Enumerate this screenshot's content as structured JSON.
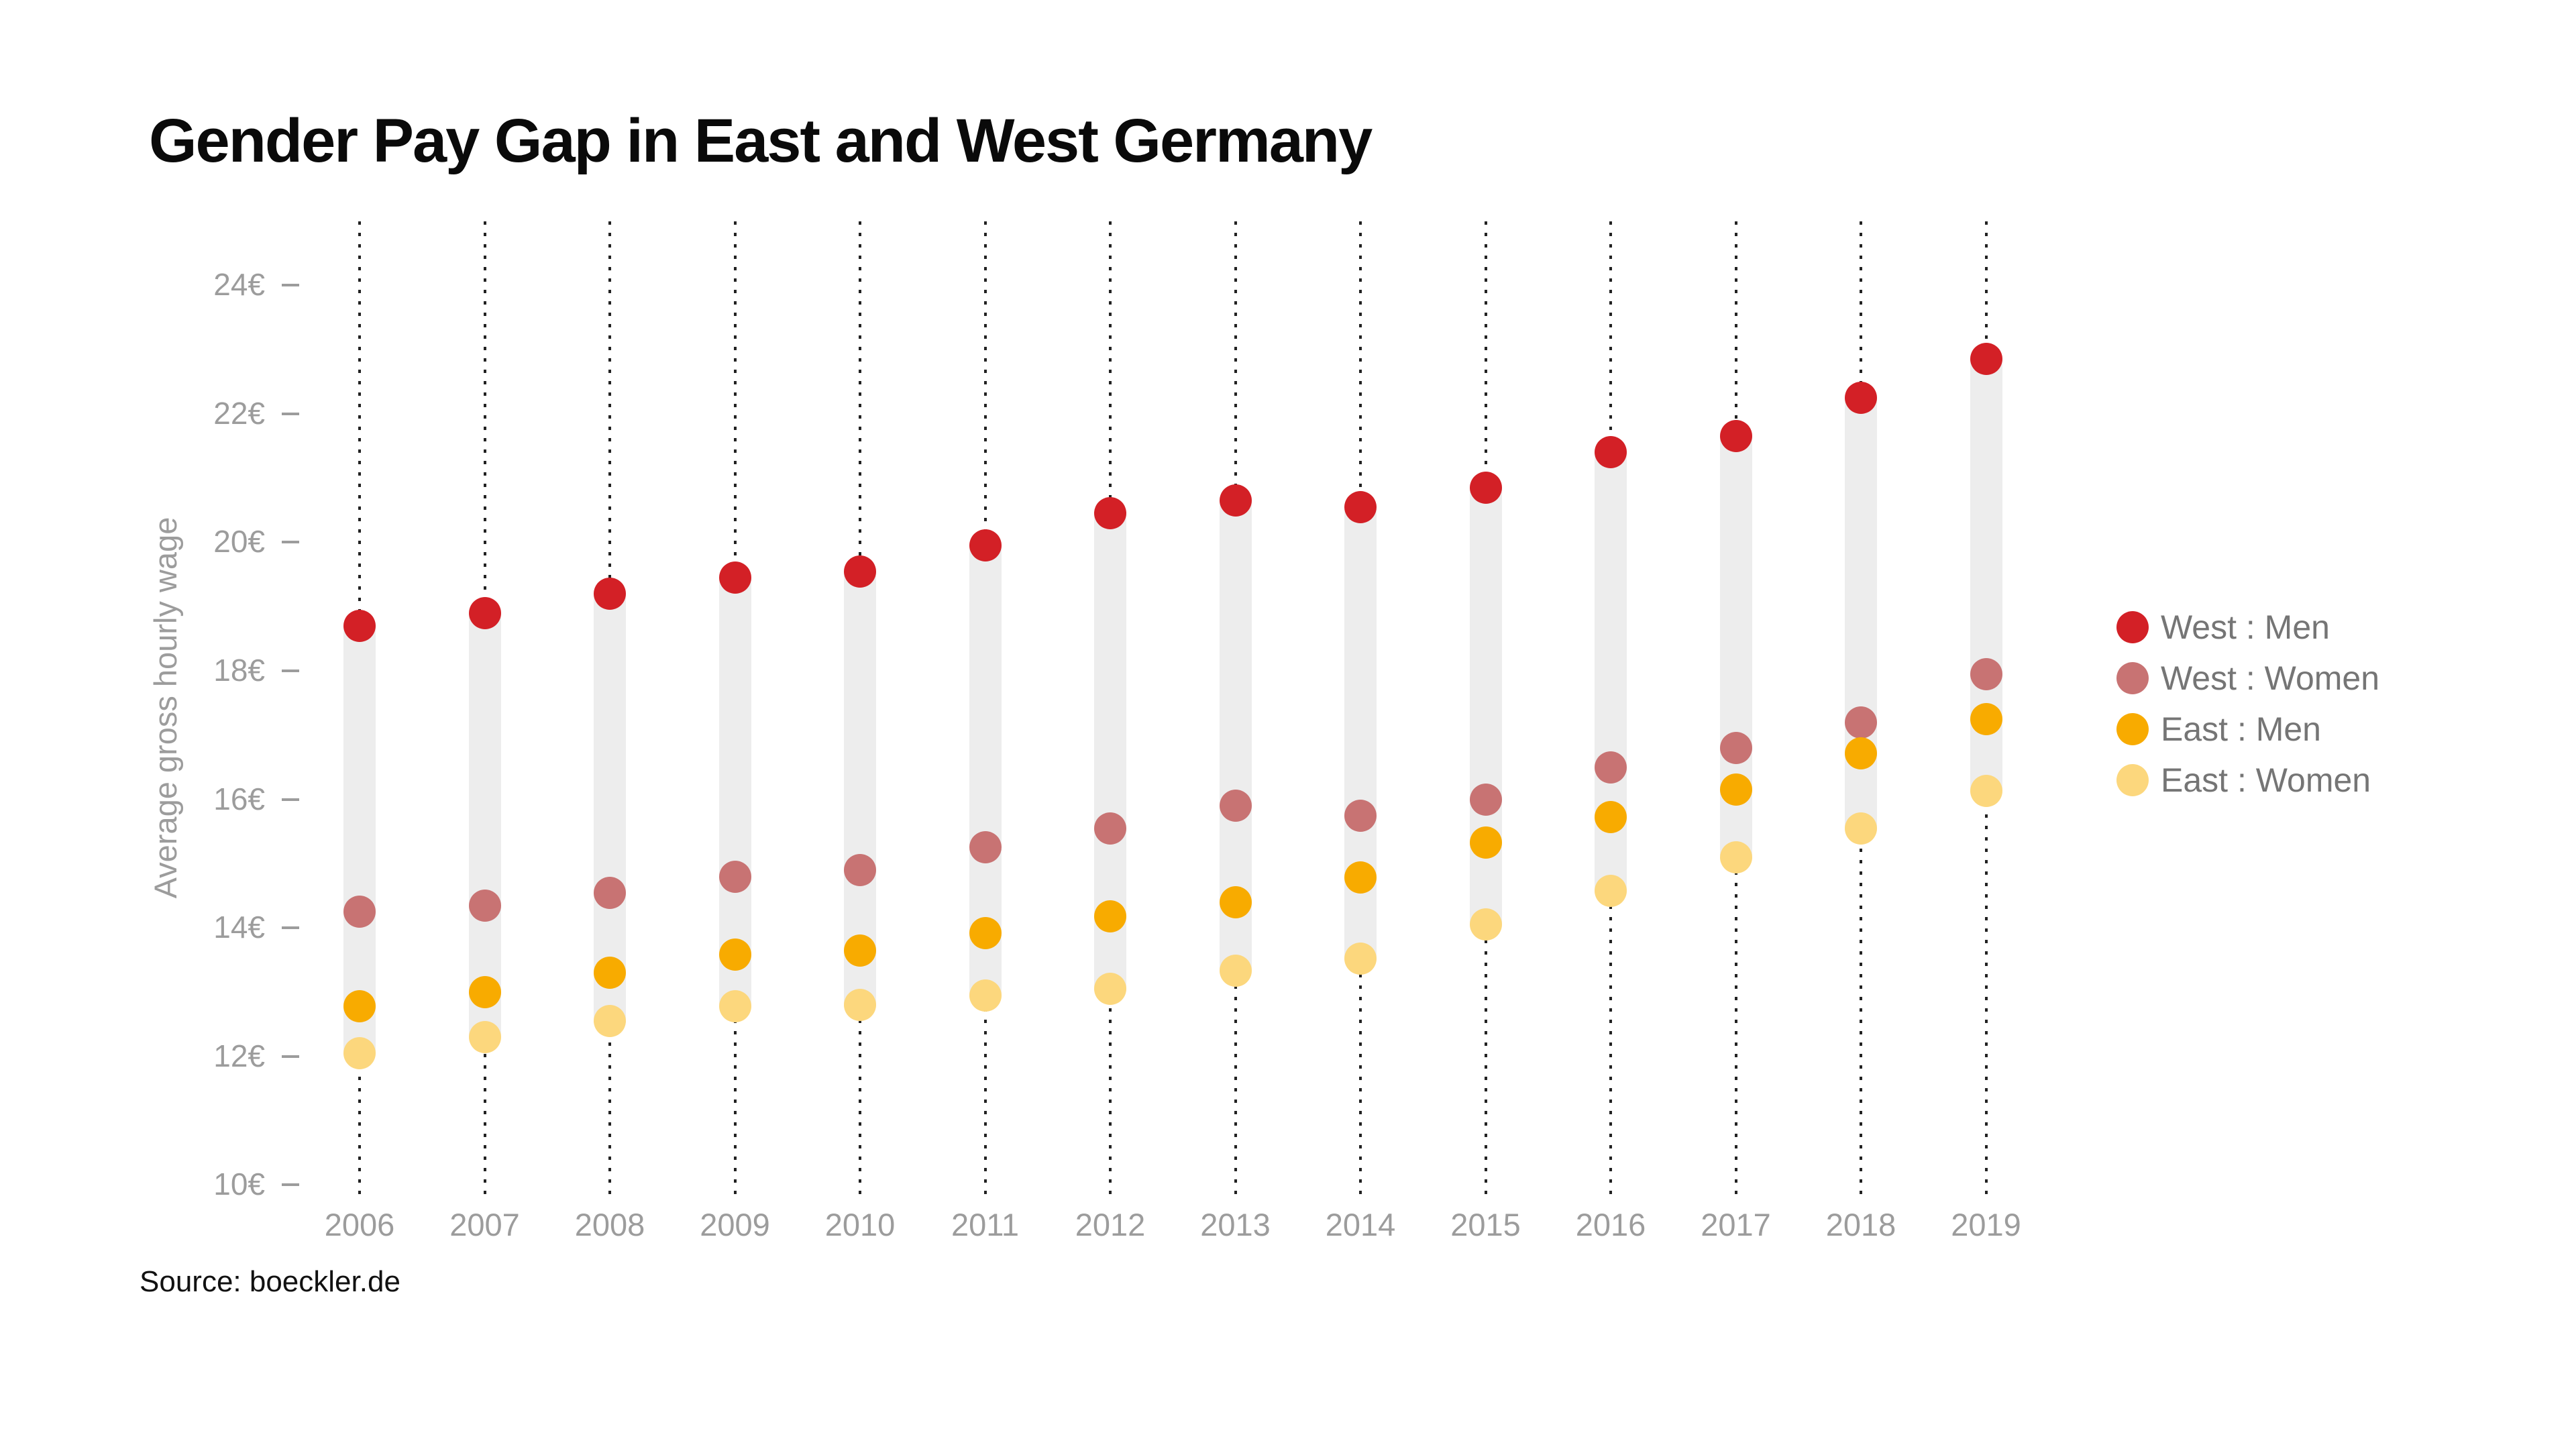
{
  "title": "Gender Pay Gap in East and West Germany",
  "source": "Source: boeckler.de",
  "y_axis": {
    "label": "Average gross hourly wage",
    "tick_suffix": "€"
  },
  "legend": [
    {
      "label": "West : Men",
      "color": "#d32026"
    },
    {
      "label": "West : Women",
      "color": "#c87373"
    },
    {
      "label": "East : Men",
      "color": "#f8ab00"
    },
    {
      "label": "East : Women",
      "color": "#fcd77d"
    }
  ],
  "chart_data": {
    "type": "scatter",
    "subtype": "dot-column-range-plot",
    "title": "Gender Pay Gap in East and West Germany",
    "xlabel": "",
    "ylabel": "Average gross hourly wage",
    "ylim": [
      10,
      24
    ],
    "yticks": [
      24,
      22,
      20,
      18,
      16,
      14,
      12,
      10
    ],
    "ytick_suffix": "€",
    "grid": "vertical-dotted",
    "legend_position": "right",
    "categories": [
      "2006",
      "2007",
      "2008",
      "2009",
      "2010",
      "2011",
      "2012",
      "2013",
      "2014",
      "2015",
      "2016",
      "2017",
      "2018",
      "2019"
    ],
    "series": [
      {
        "name": "West : Men",
        "color": "#d32026",
        "values": [
          18.7,
          18.9,
          19.2,
          19.45,
          19.55,
          19.95,
          20.45,
          20.65,
          20.55,
          20.85,
          21.4,
          21.65,
          22.25,
          22.85
        ]
      },
      {
        "name": "West : Women",
        "color": "#c87373",
        "values": [
          14.25,
          14.35,
          14.55,
          14.8,
          14.9,
          15.25,
          15.55,
          15.9,
          15.75,
          16.0,
          16.5,
          16.8,
          17.2,
          17.95
        ]
      },
      {
        "name": "East : Men",
        "color": "#f8ab00",
        "values": [
          12.78,
          13.0,
          13.3,
          13.58,
          13.65,
          13.92,
          14.18,
          14.4,
          14.78,
          15.33,
          15.72,
          16.15,
          16.72,
          17.25
        ]
      },
      {
        "name": "East : Women",
        "color": "#fcd77d",
        "values": [
          12.05,
          12.3,
          12.55,
          12.78,
          12.8,
          12.95,
          13.05,
          13.33,
          13.52,
          14.05,
          14.58,
          15.1,
          15.55,
          16.13
        ]
      }
    ]
  },
  "styles": {
    "band_color": "#ededed",
    "grid_dot_color": "#222222",
    "axis_text_color": "#9c9c9c",
    "legend_text_color": "#757575",
    "title_color": "#0a0a0a",
    "background": "#ffffff"
  }
}
